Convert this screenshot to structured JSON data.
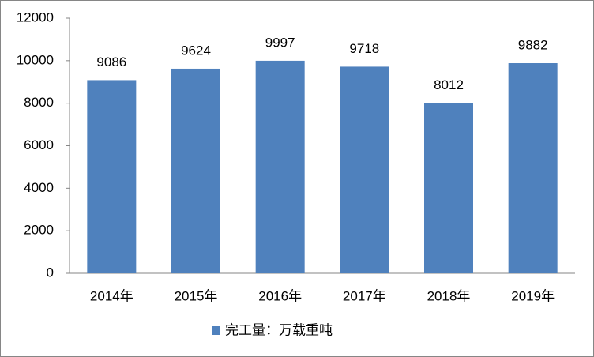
{
  "chart_data": {
    "type": "bar",
    "categories": [
      "2014年",
      "2015年",
      "2016年",
      "2017年",
      "2018年",
      "2019年"
    ],
    "series": [
      {
        "name": "完工量：万载重吨",
        "color": "#4f81bd",
        "values": [
          9086,
          9624,
          9997,
          9718,
          8012,
          9882
        ]
      }
    ],
    "ylim": [
      0,
      12000
    ],
    "yticks": [
      0,
      2000,
      4000,
      6000,
      8000,
      10000,
      12000
    ],
    "grid": false,
    "legend": "bottom",
    "data_labels": true
  }
}
